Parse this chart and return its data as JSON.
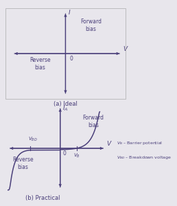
{
  "bg_color": "#e8e6ec",
  "panel_a_bg": "#ffffff",
  "diode_color": "#4a3f7a",
  "text_color": "#4a3f7a",
  "font_size": 5.5,
  "title_a": "(a) Ideal",
  "title_b": "(b) Practical",
  "label_forward": "Forward\nbias",
  "label_reverse": "Reverse\nbias",
  "label_I": "I",
  "label_Ia": "$I_A$",
  "label_V": "V",
  "label_0": "0",
  "label_VB": "$V_B$",
  "label_VBD": "$V_{BD}$",
  "legend_VB": "$V_B$ – Barrier potential",
  "legend_VBD": "$V_{BD}$ – Breakdown voltage"
}
